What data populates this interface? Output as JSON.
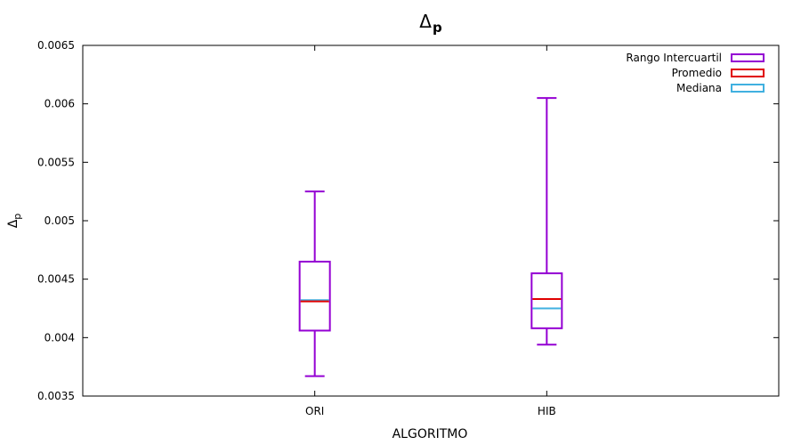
{
  "chart_data": {
    "type": "box",
    "title": "Δ",
    "title_subscript": "p",
    "xlabel": "ALGORITMO",
    "ylabel": "Δ",
    "ylabel_subscript": "p",
    "ylim": [
      0.0035,
      0.0065
    ],
    "yticks": [
      0.0035,
      0.004,
      0.0045,
      0.005,
      0.0055,
      0.006,
      0.0065
    ],
    "ytick_labels": [
      "0.0035",
      "0.004",
      "0.0045",
      "0.005",
      "0.0055",
      "0.006",
      "0.0065"
    ],
    "categories": [
      "ORI",
      "HIB"
    ],
    "boxes": [
      {
        "category": "ORI",
        "min": 0.00367,
        "q1": 0.00406,
        "median": 0.00432,
        "mean": 0.00431,
        "q3": 0.00465,
        "max": 0.00525
      },
      {
        "category": "HIB",
        "min": 0.00394,
        "q1": 0.00408,
        "median": 0.00425,
        "mean": 0.00433,
        "q3": 0.00455,
        "max": 0.00605
      }
    ],
    "legend_position": "top-right",
    "legend": [
      {
        "label": "Rango Intercuartil",
        "color": "#9400d3"
      },
      {
        "label": "Promedio",
        "color": "#e00000"
      },
      {
        "label": "Mediana",
        "color": "#40b0e0"
      }
    ],
    "colors": {
      "box": "#9400d3",
      "mean": "#e00000",
      "median": "#40b0e0"
    }
  }
}
